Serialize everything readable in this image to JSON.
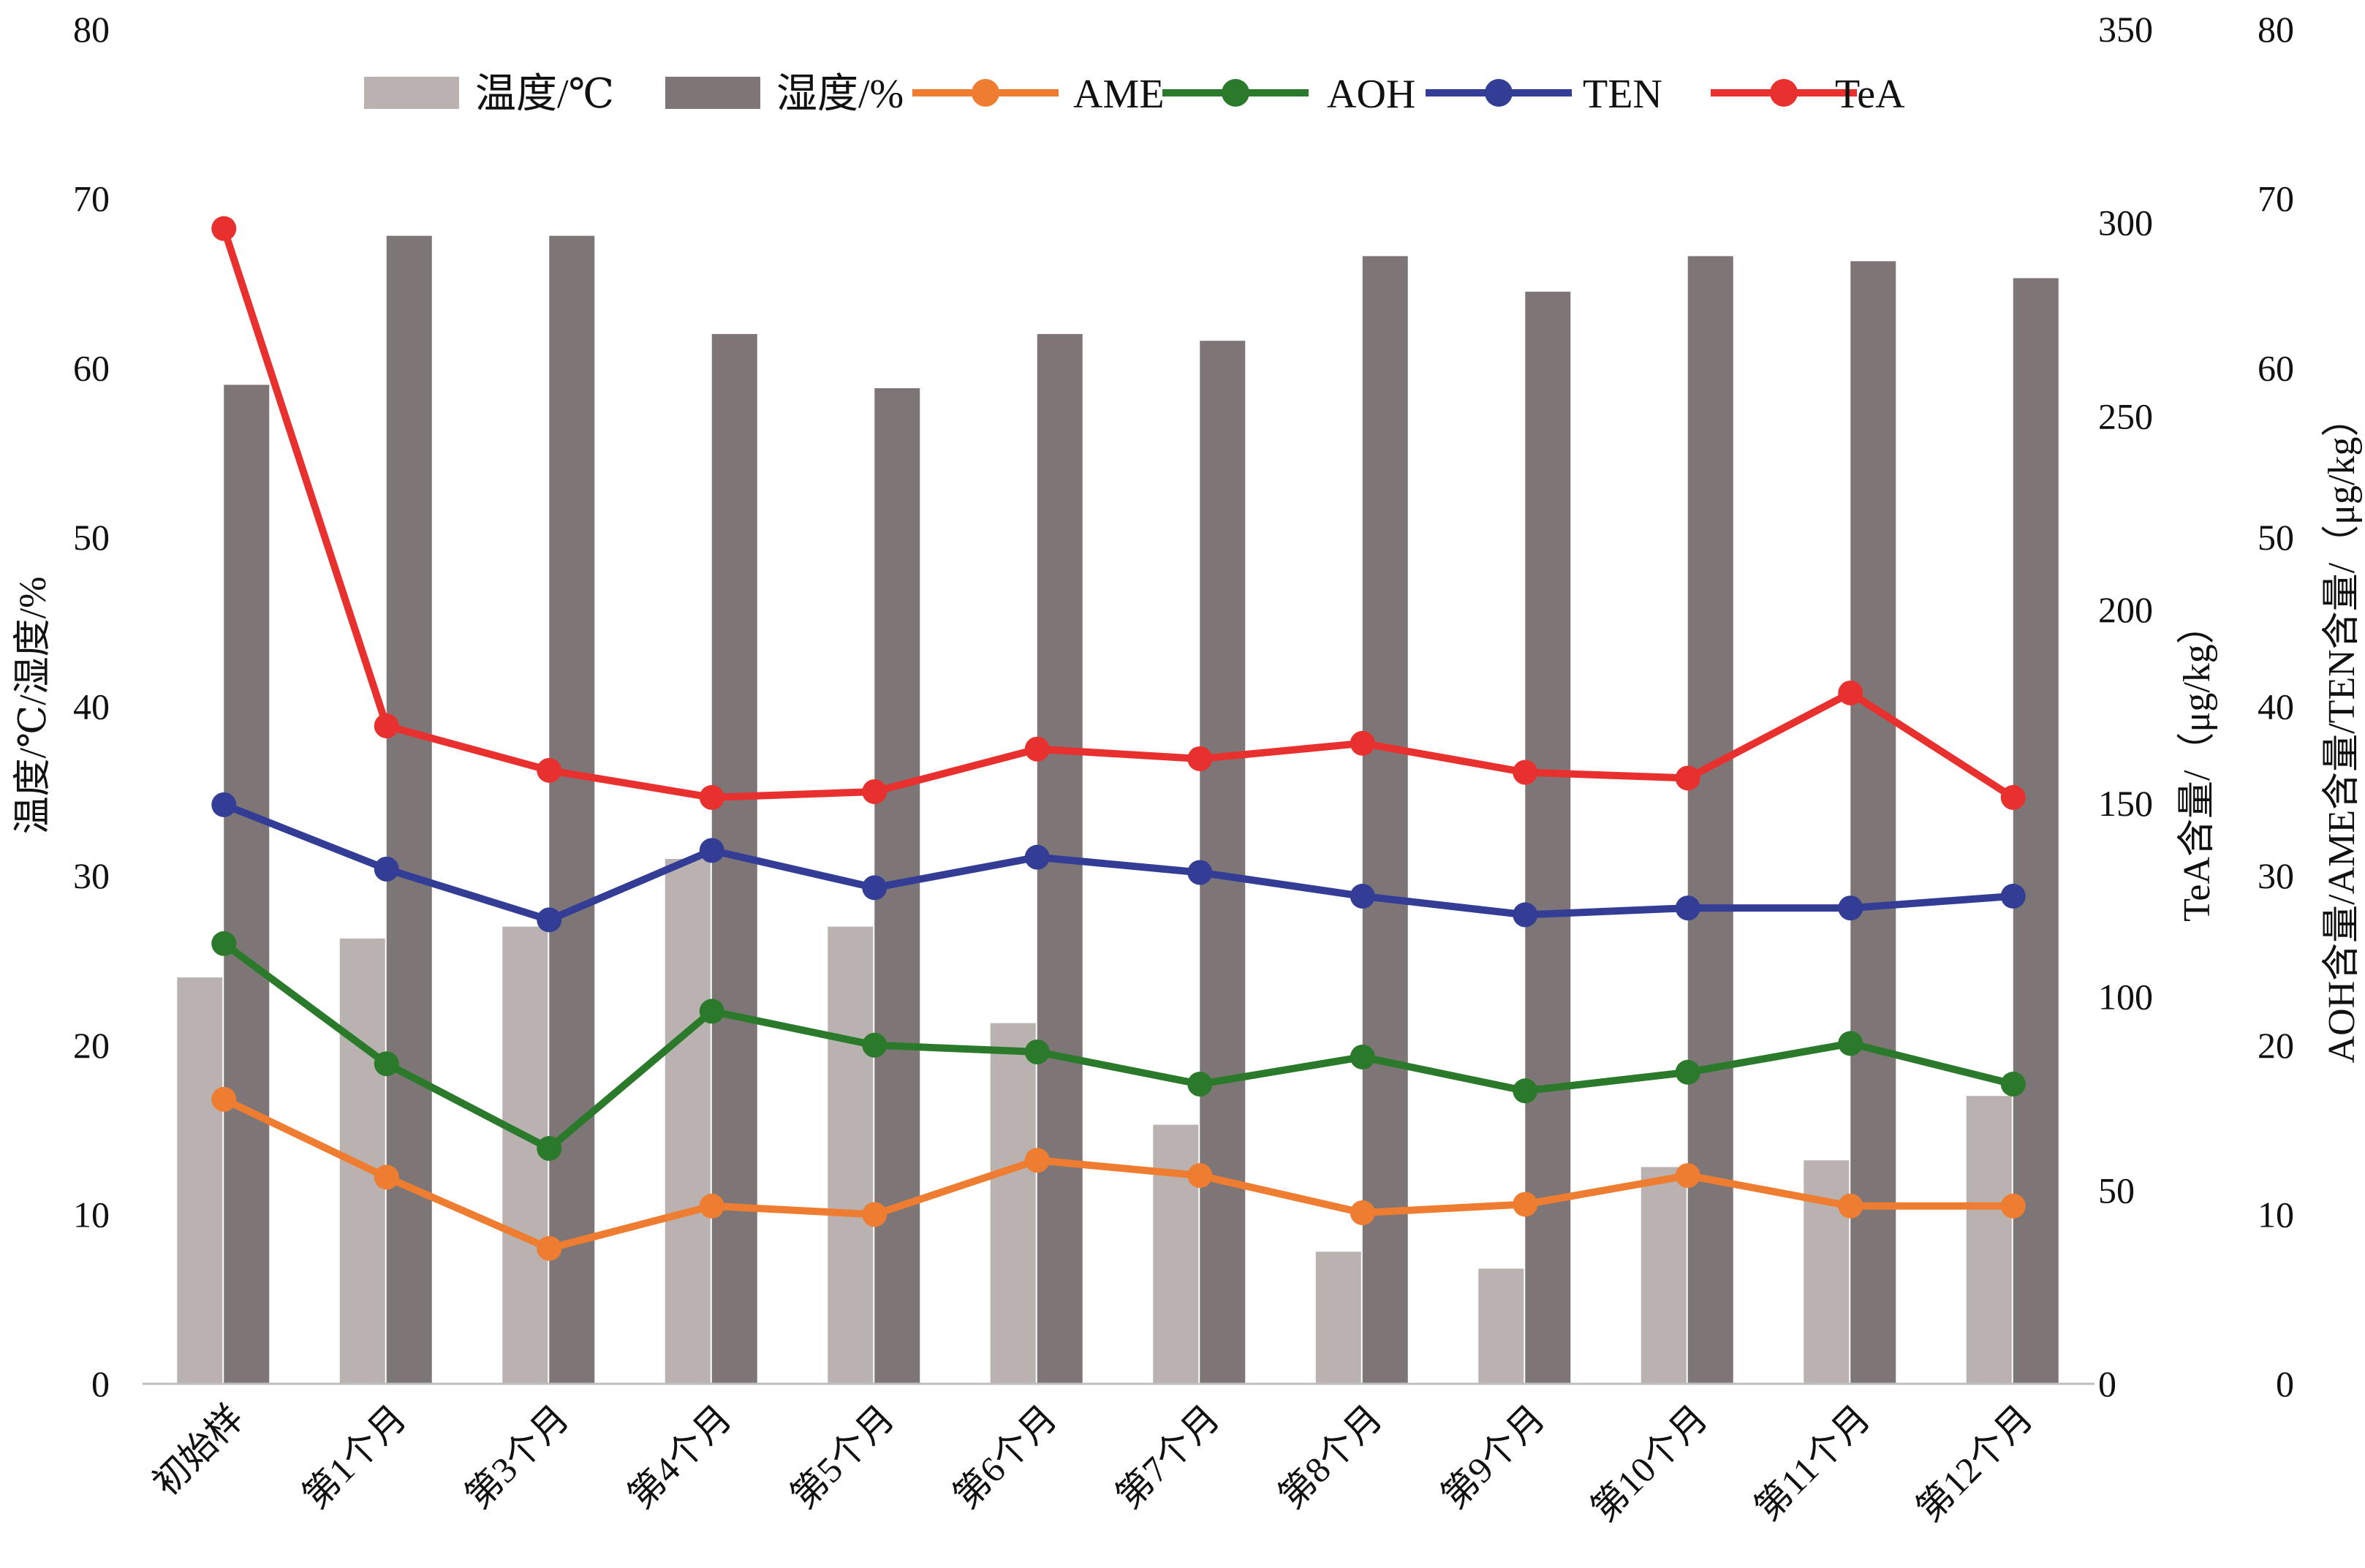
{
  "chart_data": {
    "type": "bar+line",
    "categories": [
      "初始样",
      "第1个月",
      "第3个月",
      "第4个月",
      "第5个月",
      "第6个月",
      "第7个月",
      "第8个月",
      "第9个月",
      "第10个月",
      "第11个月",
      "第12个月"
    ],
    "bar_series": [
      {
        "name": "温度/℃",
        "color": "#bab2b0",
        "values": [
          24.0,
          26.3,
          27.0,
          31.0,
          27.0,
          21.3,
          15.3,
          7.8,
          6.8,
          12.8,
          13.2,
          17.0
        ]
      },
      {
        "name": "湿度/%",
        "color": "#7e7676",
        "values": [
          59.0,
          67.8,
          67.8,
          62.0,
          58.8,
          62.0,
          61.6,
          66.6,
          64.5,
          66.6,
          66.3,
          65.3
        ]
      }
    ],
    "line_series": [
      {
        "name": "AME",
        "color": "#ee7d31",
        "axis": "right2",
        "values": [
          16.8,
          12.2,
          8.0,
          10.5,
          10.0,
          13.2,
          12.3,
          10.1,
          10.6,
          12.3,
          10.5,
          10.5
        ]
      },
      {
        "name": "AOH",
        "color": "#2b7a2b",
        "axis": "right2",
        "values": [
          26.0,
          18.9,
          13.9,
          22.0,
          20.0,
          19.6,
          17.7,
          19.3,
          17.3,
          18.4,
          20.1,
          17.7
        ]
      },
      {
        "name": "TEN",
        "color": "#333d96",
        "axis": "right2",
        "values": [
          34.2,
          30.4,
          27.4,
          31.5,
          29.3,
          31.1,
          30.2,
          28.8,
          27.7,
          28.1,
          28.1,
          28.8
        ]
      },
      {
        "name": "TeA",
        "color": "#e8312f",
        "axis": "right1",
        "values": [
          298.5,
          170.0,
          158.5,
          151.5,
          153.0,
          164.0,
          161.5,
          165.5,
          158.0,
          156.5,
          178.5,
          151.5
        ]
      }
    ],
    "axes": {
      "left": {
        "label": "温度/℃/湿度/%",
        "ylim": [
          0,
          80
        ],
        "ticks": [
          "0",
          "10",
          "20",
          "30",
          "40",
          "50",
          "60",
          "70",
          "80"
        ]
      },
      "right1": {
        "label": "TeA含量/（μg/kg）",
        "ylim": [
          0,
          350
        ],
        "ticks": [
          "0",
          "50",
          "100",
          "150",
          "200",
          "250",
          "300",
          "350"
        ]
      },
      "right2": {
        "label": "AOH含量/AME含量/TEN含量/（μg/kg）",
        "ylim": [
          0,
          80
        ],
        "ticks": [
          "0",
          "10",
          "20",
          "30",
          "40",
          "50",
          "60",
          "70",
          "80"
        ]
      }
    },
    "legend": {
      "position": "top",
      "order": [
        "温度/℃",
        "湿度/%",
        "AME",
        "AOH",
        "TEN",
        "TeA"
      ]
    },
    "grid": false
  }
}
